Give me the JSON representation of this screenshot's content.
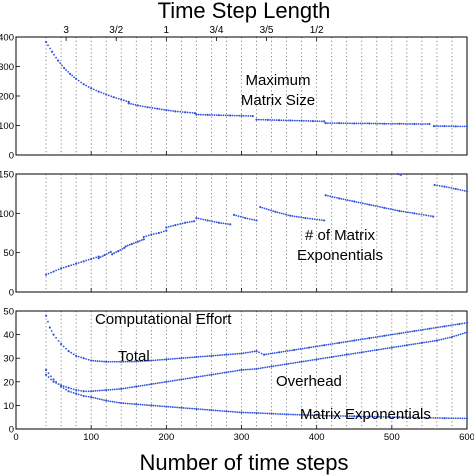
{
  "title": "Time Step Length",
  "xlabel": "Number of time steps",
  "top_axis": {
    "ticks": [
      {
        "label": "3",
        "x": 66.67
      },
      {
        "label": "3/2",
        "x": 133.33
      },
      {
        "label": "1",
        "x": 200
      },
      {
        "label": "3/4",
        "x": 266.67
      },
      {
        "label": "3/5",
        "x": 333.33
      },
      {
        "label": "1/2",
        "x": 400
      }
    ]
  },
  "annotations": {
    "max_matrix_line1": "Maximum",
    "max_matrix_line2": "Matrix Size",
    "num_exp_line1": "# of Matrix",
    "num_exp_line2": "Exponentials",
    "comp_effort": "Computational Effort",
    "total": "Total",
    "overhead": "Overhead",
    "matrix_exp": "Matrix Exponentials"
  },
  "colors": {
    "marker": "#2f52d8"
  },
  "chart_data": [
    {
      "type": "scatter",
      "name_label": "Maximum Matrix Size",
      "xlim": [
        0,
        600
      ],
      "ylim": [
        0,
        400
      ],
      "xticks": [
        0,
        100,
        200,
        300,
        400,
        500,
        600
      ],
      "yticks": [
        0,
        100,
        200,
        300,
        400
      ],
      "grid": "vertical dotted",
      "segments": [
        {
          "x": [
            40,
            48,
            56,
            64,
            72,
            80,
            90,
            100,
            110,
            120,
            130,
            140,
            150
          ],
          "y": [
            383,
            350,
            320,
            295,
            275,
            258,
            240,
            226,
            215,
            205,
            196,
            188,
            180
          ]
        },
        {
          "x": [
            150,
            162,
            175,
            188,
            200,
            212,
            225,
            238
          ],
          "y": [
            175,
            168,
            162,
            157,
            152,
            148,
            145,
            142
          ]
        },
        {
          "x": [
            240,
            255,
            270,
            285,
            300,
            315
          ],
          "y": [
            137,
            136,
            135,
            134,
            133,
            132
          ]
        },
        {
          "x": [
            320,
            335,
            350,
            365,
            380,
            395,
            410
          ],
          "y": [
            120,
            119,
            118,
            117,
            116,
            115,
            114
          ]
        },
        {
          "x": [
            412,
            430,
            450,
            470,
            490,
            510,
            530,
            550
          ],
          "y": [
            108,
            108,
            107,
            107,
            106,
            106,
            105,
            105
          ]
        },
        {
          "x": [
            556,
            570,
            585,
            600
          ],
          "y": [
            98,
            98,
            97,
            97
          ]
        }
      ]
    },
    {
      "type": "scatter",
      "name_label": "# of Matrix Exponentials",
      "xlim": [
        0,
        600
      ],
      "ylim": [
        0,
        150
      ],
      "xticks": [
        0,
        100,
        200,
        300,
        400,
        500,
        600
      ],
      "yticks": [
        0,
        50,
        100,
        150
      ],
      "grid": "vertical dotted",
      "segments": [
        {
          "x": [
            40,
            50,
            60,
            70,
            80,
            90,
            100,
            110
          ],
          "y": [
            22,
            26,
            30,
            33,
            36,
            39,
            42,
            45
          ]
        },
        {
          "x": [
            110,
            118,
            126
          ],
          "y": [
            43,
            47,
            51
          ]
        },
        {
          "x": [
            128,
            136,
            144
          ],
          "y": [
            48,
            52,
            56
          ]
        },
        {
          "x": [
            146,
            154,
            162,
            170
          ],
          "y": [
            58,
            61,
            64,
            67
          ]
        },
        {
          "x": [
            170,
            180,
            190,
            200
          ],
          "y": [
            70,
            73,
            75,
            78
          ]
        },
        {
          "x": [
            200,
            212,
            225,
            237
          ],
          "y": [
            82,
            85,
            88,
            90
          ]
        },
        {
          "x": [
            240,
            255,
            270,
            285
          ],
          "y": [
            94,
            91,
            88,
            86
          ]
        },
        {
          "x": [
            290,
            305,
            320
          ],
          "y": [
            98,
            94,
            91
          ]
        },
        {
          "x": [
            325,
            345,
            365,
            385,
            410
          ],
          "y": [
            108,
            102,
            97,
            94,
            91
          ]
        },
        {
          "x": [
            412,
            430,
            450,
            470,
            490,
            510,
            530,
            555
          ],
          "y": [
            123,
            119,
            115,
            111,
            107,
            103,
            100,
            96
          ]
        },
        {
          "x": [
            508,
            512
          ],
          "y": [
            150,
            149
          ]
        },
        {
          "x": [
            557,
            570,
            585,
            600
          ],
          "y": [
            136,
            134,
            131,
            128
          ]
        }
      ]
    },
    {
      "type": "scatter",
      "name_label": "Computational Effort",
      "xlim": [
        0,
        600
      ],
      "ylim": [
        0,
        50
      ],
      "xticks": [
        0,
        100,
        200,
        300,
        400,
        500,
        600
      ],
      "yticks": [
        0,
        10,
        20,
        30,
        40,
        50
      ],
      "grid": "vertical dotted",
      "series": [
        {
          "name": "Total",
          "x": [
            40,
            45,
            50,
            60,
            70,
            80,
            90,
            100,
            120,
            140,
            160,
            180,
            200,
            220,
            240,
            260,
            280,
            300,
            320,
            330,
            350,
            370,
            390,
            410,
            430,
            450,
            470,
            490,
            510,
            530,
            550,
            570,
            590,
            600
          ],
          "y": [
            48,
            43,
            40,
            36,
            33,
            31,
            30,
            29,
            28.5,
            28.5,
            28.6,
            29,
            29.5,
            30,
            30.5,
            31,
            31.5,
            32,
            33,
            31.5,
            32.5,
            33.5,
            34.5,
            35.5,
            36.5,
            37.5,
            38.5,
            39.5,
            40.5,
            41.5,
            42.5,
            43.5,
            44.5,
            45
          ]
        },
        {
          "name": "Overhead",
          "x": [
            40,
            50,
            60,
            70,
            80,
            90,
            100,
            120,
            140,
            160,
            180,
            200,
            220,
            240,
            260,
            280,
            300,
            320,
            340,
            360,
            380,
            400,
            420,
            440,
            460,
            480,
            500,
            520,
            540,
            560,
            580,
            600
          ],
          "y": [
            23,
            20,
            18.5,
            17.5,
            16.5,
            16,
            16,
            16.5,
            17,
            18,
            19,
            20,
            21,
            22,
            23,
            24,
            25,
            25.5,
            26.5,
            27.5,
            28.5,
            29.5,
            30.5,
            31.5,
            32.5,
            33.5,
            34.5,
            35.5,
            36.5,
            37.5,
            39,
            41
          ]
        },
        {
          "name": "Matrix Exponentials",
          "x": [
            40,
            50,
            60,
            70,
            80,
            90,
            100,
            120,
            140,
            160,
            180,
            200,
            220,
            240,
            260,
            280,
            300,
            320,
            340,
            360,
            380,
            400,
            420,
            450,
            480,
            510,
            540,
            570,
            600
          ],
          "y": [
            25,
            21,
            18,
            16,
            15,
            14,
            13.5,
            12,
            11,
            10.5,
            10,
            9.5,
            9,
            8.5,
            8,
            7.5,
            7,
            6.8,
            6.5,
            6.2,
            6,
            5.8,
            5.6,
            5.4,
            5.2,
            5,
            4.8,
            4.6,
            4.5
          ]
        }
      ]
    }
  ]
}
